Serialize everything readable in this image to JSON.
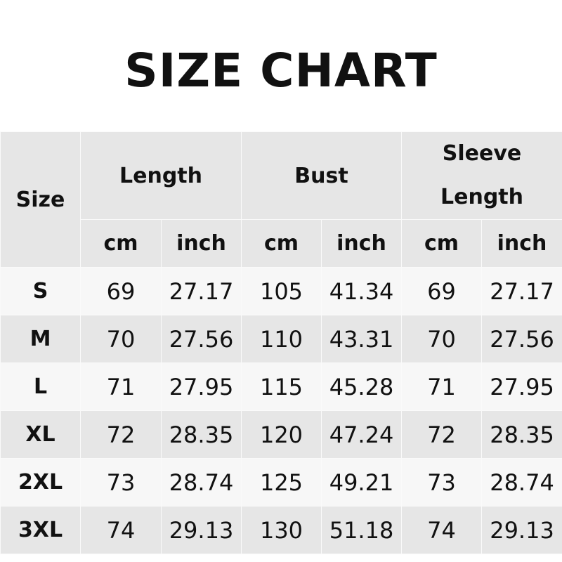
{
  "title": "SIZE CHART",
  "header": {
    "size": "Size",
    "groups": [
      {
        "label_lines": [
          "Length"
        ]
      },
      {
        "label_lines": [
          "Bust"
        ]
      },
      {
        "label_lines": [
          "Sleeve",
          "Length"
        ]
      }
    ],
    "units": [
      "cm",
      "inch",
      "cm",
      "inch",
      "cm",
      "inch"
    ]
  },
  "rows": [
    {
      "size": "S",
      "values": [
        "69",
        "27.17",
        "105",
        "41.34",
        "69",
        "27.17"
      ]
    },
    {
      "size": "M",
      "values": [
        "70",
        "27.56",
        "110",
        "43.31",
        "70",
        "27.56"
      ]
    },
    {
      "size": "L",
      "values": [
        "71",
        "27.95",
        "115",
        "45.28",
        "71",
        "27.95"
      ]
    },
    {
      "size": "XL",
      "values": [
        "72",
        "28.35",
        "120",
        "47.24",
        "72",
        "28.35"
      ]
    },
    {
      "size": "2XL",
      "values": [
        "73",
        "28.74",
        "125",
        "49.21",
        "73",
        "28.74"
      ]
    },
    {
      "size": "3XL",
      "values": [
        "74",
        "29.13",
        "130",
        "51.18",
        "74",
        "29.13"
      ]
    }
  ],
  "colors": {
    "header_bg": "#e6e6e6",
    "row_light": "#f7f7f7",
    "row_dark": "#e6e6e6"
  }
}
